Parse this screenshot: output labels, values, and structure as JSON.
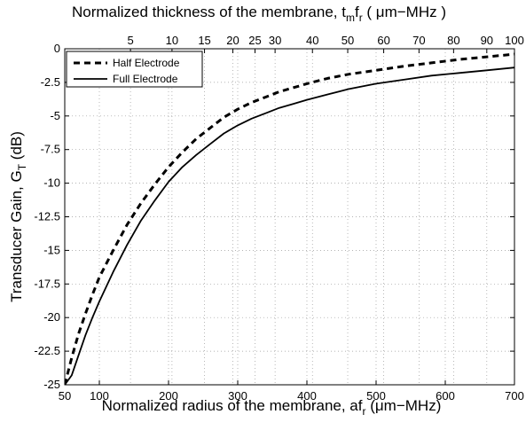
{
  "chart_data": {
    "type": "line",
    "title": "",
    "xlabel": "Normalized radius of the membrane, af",
    "xlabel_sub": "r",
    "xlabel_tail": " (μm−MHz)",
    "ylabel": "Transducer Gain, G",
    "ylabel_sub": "T",
    "ylabel_tail": " (dB)",
    "top_label_prefix": "Normalized thickness of the membrane, t",
    "top_label_sub1": "m",
    "top_label_mid": "f",
    "top_label_sub2": "r",
    "top_label_tail": " ( μm−MHz )",
    "xlim": [
      50,
      700
    ],
    "ylim": [
      -25,
      0
    ],
    "xticks": [
      50,
      100,
      200,
      300,
      400,
      500,
      600,
      700
    ],
    "xtick_labels": [
      "50",
      "100",
      "200",
      "300",
      "400",
      "500",
      "600",
      "700"
    ],
    "yticks": [
      0,
      -2.5,
      -5,
      -7.5,
      -10,
      -12.5,
      -15,
      -17.5,
      -20,
      -22.5,
      -25
    ],
    "ytick_labels": [
      "0",
      "-2.5",
      "-5",
      "-7.5",
      "-10",
      "-12.5",
      "-15",
      "-17.5",
      "-20",
      "-22.5",
      "-25"
    ],
    "top_axis": {
      "ticks": [
        5,
        10,
        15,
        20,
        25,
        30,
        40,
        50,
        60,
        70,
        80,
        90,
        100
      ],
      "tick_labels": [
        "5",
        "10",
        "15",
        "20",
        "25",
        "30",
        "40",
        "50",
        "60",
        "70",
        "80",
        "90",
        "100"
      ],
      "bottom_x_at_tick": [
        145,
        205,
        252,
        293,
        325,
        354,
        408,
        459,
        511,
        562,
        612,
        660,
        700
      ]
    },
    "grid": true,
    "legend_position": "top-left",
    "series": [
      {
        "name": "Half Electrode",
        "style": "dashed",
        "color": "#000000",
        "x": [
          50,
          60,
          70,
          80,
          90,
          100,
          120,
          140,
          160,
          180,
          200,
          220,
          240,
          260,
          280,
          300,
          320,
          340,
          360,
          380,
          400,
          430,
          460,
          500,
          540,
          580,
          620,
          660,
          700
        ],
        "y": [
          -25,
          -23.0,
          -21.2,
          -19.7,
          -18.3,
          -17.0,
          -15.0,
          -13.1,
          -11.5,
          -10.1,
          -8.8,
          -7.7,
          -6.7,
          -5.9,
          -5.1,
          -4.5,
          -4.0,
          -3.6,
          -3.2,
          -2.9,
          -2.6,
          -2.2,
          -1.9,
          -1.6,
          -1.3,
          -1.05,
          -0.8,
          -0.6,
          -0.4
        ]
      },
      {
        "name": "Full Electrode",
        "style": "solid",
        "color": "#000000",
        "x": [
          50,
          60,
          70,
          80,
          90,
          100,
          120,
          140,
          160,
          180,
          200,
          220,
          240,
          260,
          280,
          300,
          320,
          340,
          360,
          380,
          400,
          430,
          460,
          500,
          540,
          580,
          620,
          660,
          700
        ],
        "y": [
          -25,
          -24.3,
          -22.8,
          -21.3,
          -20.0,
          -18.8,
          -16.6,
          -14.6,
          -12.8,
          -11.3,
          -9.9,
          -8.8,
          -7.9,
          -7.1,
          -6.3,
          -5.7,
          -5.2,
          -4.8,
          -4.4,
          -4.1,
          -3.8,
          -3.4,
          -3.0,
          -2.6,
          -2.3,
          -2.0,
          -1.8,
          -1.6,
          -1.4
        ]
      }
    ]
  }
}
